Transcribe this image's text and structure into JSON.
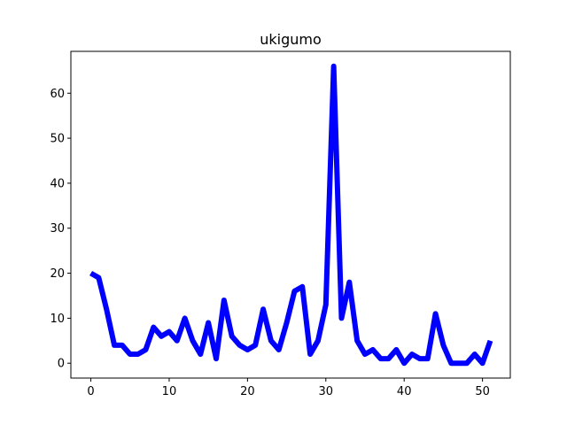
{
  "chart_data": {
    "type": "line",
    "title": "ukigumo",
    "xlabel": "",
    "ylabel": "",
    "xlim": [
      -2.55,
      53.55
    ],
    "ylim": [
      -3.3,
      69.3
    ],
    "xticks": [
      0,
      10,
      20,
      30,
      40,
      50
    ],
    "yticks": [
      0,
      10,
      20,
      30,
      40,
      50,
      60
    ],
    "grid": false,
    "series": [
      {
        "color": "#0000ff",
        "x": [
          0,
          1,
          2,
          3,
          4,
          5,
          6,
          7,
          8,
          9,
          10,
          11,
          12,
          13,
          14,
          15,
          16,
          17,
          18,
          19,
          20,
          21,
          22,
          23,
          24,
          25,
          26,
          27,
          28,
          29,
          30,
          31,
          32,
          33,
          34,
          35,
          36,
          37,
          38,
          39,
          40,
          41,
          42,
          43,
          44,
          45,
          46,
          47,
          48,
          49,
          50,
          51
        ],
        "values": [
          20,
          19,
          12,
          4,
          4,
          2,
          2,
          3,
          8,
          6,
          7,
          5,
          10,
          5,
          2,
          9,
          1,
          14,
          6,
          4,
          3,
          4,
          12,
          5,
          3,
          9,
          16,
          17,
          2,
          5,
          13,
          66,
          10,
          18,
          5,
          2,
          3,
          1,
          1,
          3,
          0,
          2,
          1,
          1,
          11,
          4,
          0,
          0,
          0,
          2,
          0,
          5
        ]
      }
    ]
  }
}
